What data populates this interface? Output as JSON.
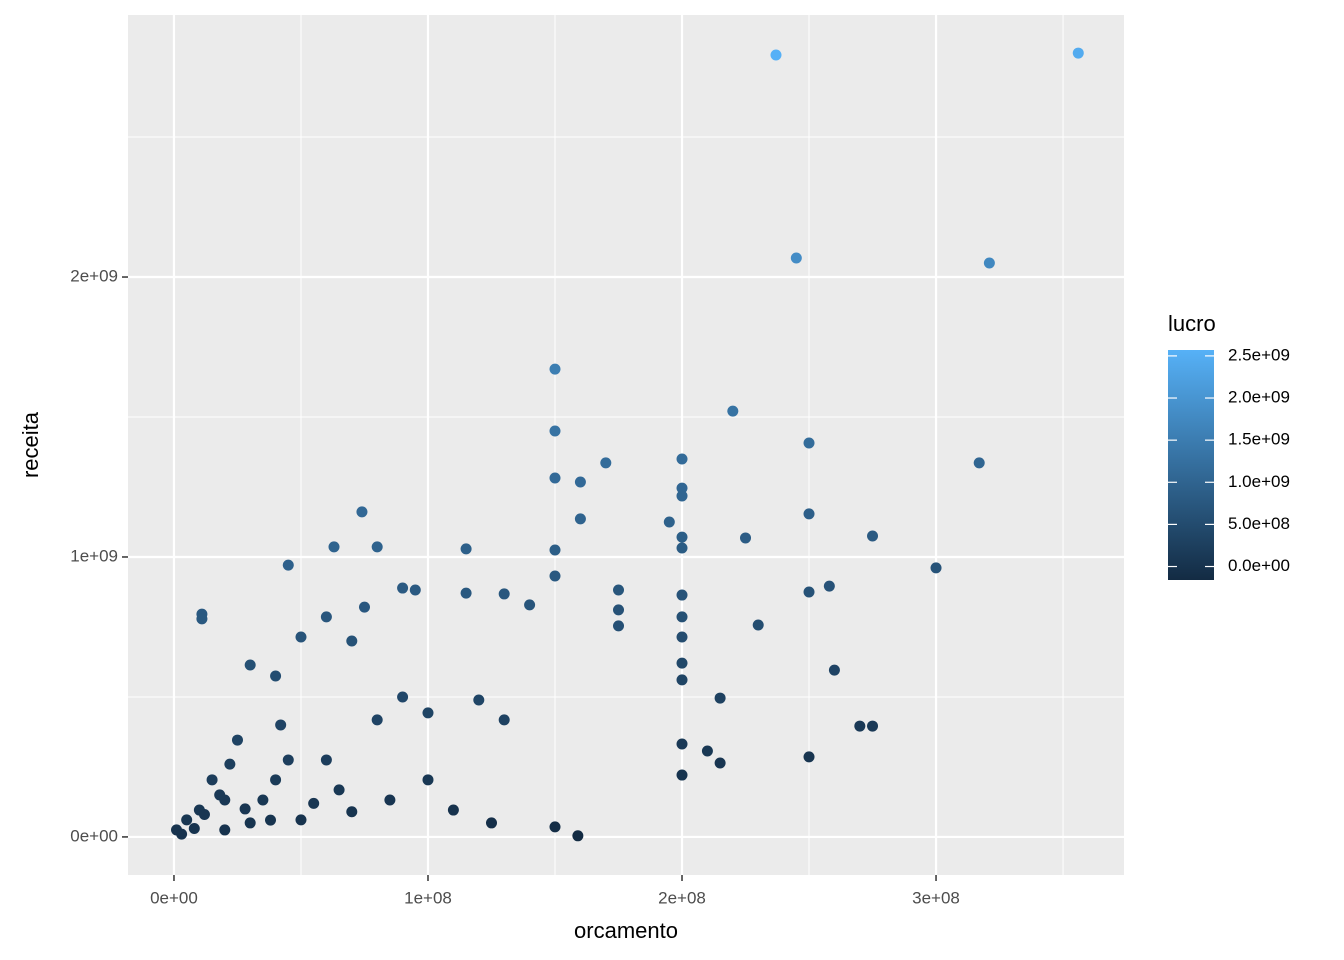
{
  "chart_data": {
    "type": "scatter",
    "x_label": "orcamento",
    "y_label": "receita",
    "xlim": [
      -18100000.0,
      374000000.0
    ],
    "ylim": [
      -136000000.0,
      2936000000.0
    ],
    "xticks": [
      {
        "value": 0,
        "label": "0e+00"
      },
      {
        "value": 100000000.0,
        "label": "1e+08"
      },
      {
        "value": 200000000.0,
        "label": "2e+08"
      },
      {
        "value": 300000000.0,
        "label": "3e+08"
      }
    ],
    "yticks": [
      {
        "value": 0,
        "label": "0e+00"
      },
      {
        "value": 1000000000.0,
        "label": "1e+09"
      },
      {
        "value": 2000000000.0,
        "label": "2e+09"
      }
    ],
    "x_minor_ticks": [
      50000000.0,
      150000000.0,
      250000000.0,
      350000000.0
    ],
    "y_minor_ticks": [
      500000000.0,
      1500000000.0,
      2500000000.0
    ],
    "grid": true,
    "color_scale": {
      "title": "lucro",
      "low": "#132B43",
      "high": "#56B1F7",
      "lim": [
        -160000000.0,
        2570000000.0
      ],
      "ticks": [
        {
          "value": 0,
          "label": "0.0e+00"
        },
        {
          "value": 500000000.0,
          "label": "5.0e+08"
        },
        {
          "value": 1000000000.0,
          "label": "1.0e+09"
        },
        {
          "value": 1500000000.0,
          "label": "1.5e+09"
        },
        {
          "value": 2000000000.0,
          "label": "2.0e+09"
        },
        {
          "value": 2500000000.0,
          "label": "2.5e+09"
        }
      ]
    },
    "x": [
      237000000.0,
      356000000.0,
      245000000.0,
      321000000.0,
      150000000.0,
      150000000.0,
      150000000.0,
      220000000.0,
      250000000.0,
      317000000.0,
      170000000.0,
      160000000.0,
      200000000.0,
      200000000.0,
      200000000.0,
      160000000.0,
      74000000.0,
      250000000.0,
      195000000.0,
      225000000.0,
      275000000.0,
      63000000.0,
      80000000.0,
      115000000.0,
      150000000.0,
      200000000.0,
      200000000.0,
      300000000.0,
      45000000.0,
      150000000.0,
      258000000.0,
      250000000.0,
      90000000.0,
      95000000.0,
      11000000.0,
      11000000.0,
      60000000.0,
      75000000.0,
      115000000.0,
      130000000.0,
      140000000.0,
      175000000.0,
      175000000.0,
      175000000.0,
      200000000.0,
      200000000.0,
      200000000.0,
      200000000.0,
      200000000.0,
      260000000.0,
      230000000.0,
      215000000.0,
      270000000.0,
      275000000.0,
      250000000.0,
      200000000.0,
      200000000.0,
      210000000.0,
      215000000.0,
      150000000.0,
      159000000.0,
      50000000.0,
      70000000.0,
      30000000.0,
      40000000.0,
      90000000.0,
      100000000.0,
      120000000.0,
      130000000.0,
      100000000.0,
      80000000.0,
      60000000.0,
      40000000.0,
      20000000.0,
      10000000.0,
      5000000.0,
      1000000.0,
      20000000.0,
      30000000.0,
      50000000.0,
      35000000.0,
      15000000.0,
      25000000.0,
      45000000.0,
      65000000.0,
      85000000.0,
      110000000.0,
      125000000.0,
      3000000.0,
      8000000.0,
      12000000.0,
      18000000.0,
      28000000.0,
      38000000.0,
      55000000.0,
      70000000.0,
      22000000.0,
      42000000.0
    ],
    "y": [
      2793000000.0,
      2800000000.0,
      2068000000.0,
      2050000000.0,
      1671000000.0,
      1450000000.0,
      1282000000.0,
      1521000000.0,
      1407000000.0,
      1336000000.0,
      1336000000.0,
      1268000000.0,
      1350000000.0,
      1246000000.0,
      1218000000.0,
      1136000000.0,
      1161000000.0,
      1154000000.0,
      1125000000.0,
      1068000000.0,
      1075000000.0,
      1036000000.0,
      1036000000.0,
      1029000000.0,
      1025000000.0,
      1071000000.0,
      1032000000.0,
      961000000.0,
      971000000.0,
      932000000.0,
      896000000.0,
      875000000.0,
      889000000.0,
      882000000.0,
      796000000.0,
      779000000.0,
      786000000.0,
      821000000.0,
      871000000.0,
      868000000.0,
      829000000.0,
      882000000.0,
      811000000.0,
      754000000.0,
      864000000.0,
      786000000.0,
      714000000.0,
      621000000.0,
      561000000.0,
      596000000.0,
      757000000.0,
      496000000.0,
      396000000.0,
      396000000.0,
      286000000.0,
      332000000.0,
      221000000.0,
      307000000.0,
      264000000.0,
      36000000.0,
      4000000.0,
      714000000.0,
      700000000.0,
      614000000.0,
      575000000.0,
      500000000.0,
      443000000.0,
      489000000.0,
      418000000.0,
      204000000.0,
      418000000.0,
      275000000.0,
      204000000.0,
      132000000.0,
      96000000.0,
      61000000.0,
      25000000.0,
      25000000.0,
      50000000.0,
      61000000.0,
      132000000.0,
      204000000.0,
      346000000.0,
      275000000.0,
      168000000.0,
      132000000.0,
      96000000.0,
      50000000.0,
      10000000.0,
      30000000.0,
      80000000.0,
      150000000.0,
      100000000.0,
      60000000.0,
      120000000.0,
      90000000.0,
      260000000.0,
      400000000.0
    ],
    "lucro": [
      2556000000.0,
      2444000000.0,
      1823000000.0,
      1729000000.0,
      1521000000.0,
      1300000000.0,
      1132000000.0,
      1301000000.0,
      1157000000.0,
      1019000000.0,
      1166000000.0,
      1108000000.0,
      1150000000.0,
      1046000000.0,
      1018000000.0,
      976000000.0,
      1087000000.0,
      904000000.0,
      930000000.0,
      843000000.0,
      800000000.0,
      973000000.0,
      956000000.0,
      914000000.0,
      875000000.0,
      871000000.0,
      832000000.0,
      661000000.0,
      926000000.0,
      782000000.0,
      638000000.0,
      625000000.0,
      799000000.0,
      787000000.0,
      785000000.0,
      768000000.0,
      726000000.0,
      746000000.0,
      756000000.0,
      738000000.0,
      689000000.0,
      707000000.0,
      636000000.0,
      579000000.0,
      664000000.0,
      586000000.0,
      514000000.0,
      421000000.0,
      361000000.0,
      336000000.0,
      527000000.0,
      281000000.0,
      126000000.0,
      121000000.0,
      36000000.0,
      132000000.0,
      21000000.0,
      97000000.0,
      49000000.0,
      -114000000.0,
      -155000000.0,
      664000000.0,
      630000000.0,
      584000000.0,
      535000000.0,
      410000000.0,
      343000000.0,
      369000000.0,
      288000000.0,
      104000000.0,
      338000000.0,
      215000000.0,
      164000000.0,
      112000000.0,
      86000000.0,
      56000000.0,
      24000000.0,
      5000000.0,
      20000000.0,
      11000000.0,
      97000000.0,
      189000000.0,
      321000000.0,
      230000000.0,
      103000000.0,
      47000000.0,
      -14000000.0,
      -75000000.0,
      7000000.0,
      22000000.0,
      68000000.0,
      132000000.0,
      72000000.0,
      22000000.0,
      65000000.0,
      20000000.0,
      238000000.0,
      358000000.0
    ]
  }
}
